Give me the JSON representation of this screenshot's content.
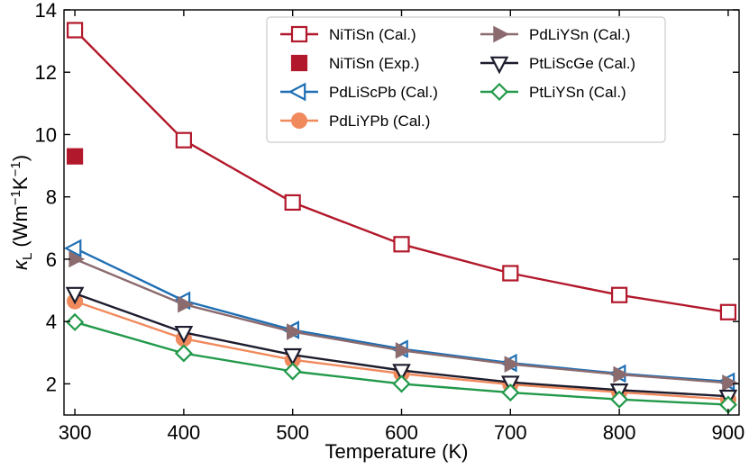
{
  "chart_data": {
    "type": "line",
    "title": "",
    "xlabel": "Temperature (K)",
    "ylabel": "κL (Wm⁻¹K⁻¹)",
    "ylabel_main": "κ",
    "ylabel_sub": "L",
    "ylabel_rest": " (Wm",
    "ylabel_sup1": "−1",
    "ylabel_mid": "K",
    "ylabel_sup2": "−1",
    "ylabel_end": ")",
    "xlim": [
      290,
      910
    ],
    "ylim": [
      1,
      14
    ],
    "xticks": [
      300,
      400,
      500,
      600,
      700,
      800,
      900
    ],
    "yticks": [
      2,
      4,
      6,
      8,
      10,
      12,
      14
    ],
    "grid": false,
    "legend_position": "top-right",
    "x": [
      300,
      400,
      500,
      600,
      700,
      800,
      900
    ],
    "series": [
      {
        "name": "NiTiSn (Cal.)",
        "color": "#b2182b",
        "marker": "square-open",
        "values": [
          13.35,
          9.82,
          7.82,
          6.48,
          5.55,
          4.85,
          4.3
        ]
      },
      {
        "name": "NiTiSn (Exp.)",
        "color": "#b2182b",
        "marker": "square-filled",
        "points": [
          [
            300,
            9.3
          ]
        ]
      },
      {
        "name": "PdLiScPb (Cal.)",
        "color": "#1f6fb4",
        "marker": "triangle-left-open",
        "values": [
          6.35,
          4.67,
          3.73,
          3.12,
          2.67,
          2.33,
          2.07
        ]
      },
      {
        "name": "PdLiYPb (Cal.)",
        "color": "#f08a5d",
        "marker": "circle-filled",
        "values": [
          4.65,
          3.45,
          2.77,
          2.33,
          1.98,
          1.73,
          1.5
        ]
      },
      {
        "name": "PdLiYSn (Cal.)",
        "color": "#8b6b6e",
        "marker": "triangle-right-filled",
        "values": [
          6.0,
          4.55,
          3.67,
          3.07,
          2.63,
          2.3,
          2.03
        ]
      },
      {
        "name": "PtLiScGe (Cal.)",
        "color": "#1c1c2e",
        "marker": "triangle-down-open",
        "values": [
          4.9,
          3.65,
          2.93,
          2.43,
          2.05,
          1.8,
          1.6
        ]
      },
      {
        "name": "PtLiYSn (Cal.)",
        "color": "#22994a",
        "marker": "diamond-open",
        "values": [
          3.98,
          2.98,
          2.4,
          2.0,
          1.72,
          1.5,
          1.33
        ]
      }
    ]
  }
}
